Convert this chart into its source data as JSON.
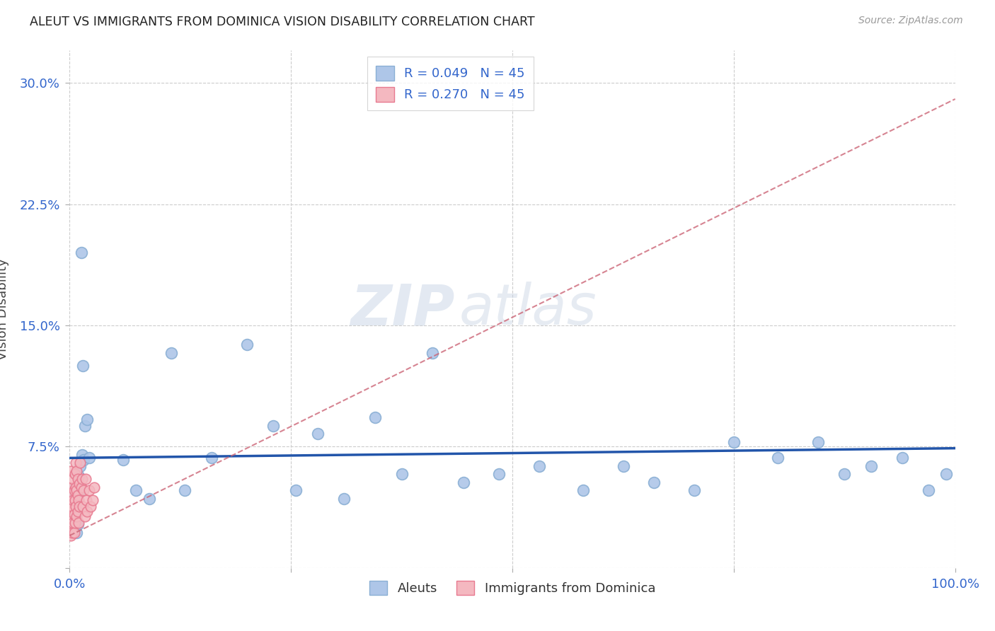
{
  "title": "ALEUT VS IMMIGRANTS FROM DOMINICA VISION DISABILITY CORRELATION CHART",
  "source": "Source: ZipAtlas.com",
  "ylabel": "Vision Disability",
  "xlim": [
    0.0,
    1.0
  ],
  "ylim": [
    0.0,
    0.32
  ],
  "xtick_labels": [
    "0.0%",
    "",
    "",
    "",
    "100.0%"
  ],
  "ytick_labels": [
    "",
    "7.5%",
    "15.0%",
    "22.5%",
    "30.0%"
  ],
  "yticks": [
    0.0,
    0.075,
    0.15,
    0.225,
    0.3
  ],
  "xticks": [
    0.0,
    0.25,
    0.5,
    0.75,
    1.0
  ],
  "aleuts_color": "#aec6e8",
  "aleuts_edge_color": "#8aafd4",
  "dominica_color": "#f4b8c0",
  "dominica_edge_color": "#e87a90",
  "aleuts_line_color": "#2255aa",
  "dominica_line_color": "#cc6677",
  "background_color": "#ffffff",
  "grid_color": "#cccccc",
  "legend_label_1": "R = 0.049   N = 45",
  "legend_label_2": "R = 0.270   N = 45",
  "bottom_legend_1": "Aleuts",
  "bottom_legend_2": "Immigrants from Dominica",
  "watermark_1": "ZIP",
  "watermark_2": "atlas",
  "aleuts_x": [
    0.003,
    0.005,
    0.006,
    0.007,
    0.008,
    0.009,
    0.01,
    0.011,
    0.012,
    0.013,
    0.014,
    0.015,
    0.016,
    0.017,
    0.02,
    0.022,
    0.06,
    0.075,
    0.09,
    0.115,
    0.13,
    0.16,
    0.2,
    0.23,
    0.255,
    0.28,
    0.31,
    0.345,
    0.375,
    0.41,
    0.445,
    0.485,
    0.53,
    0.58,
    0.625,
    0.66,
    0.705,
    0.75,
    0.8,
    0.845,
    0.875,
    0.905,
    0.94,
    0.97,
    0.99
  ],
  "aleuts_y": [
    0.048,
    0.04,
    0.033,
    0.043,
    0.022,
    0.027,
    0.057,
    0.047,
    0.063,
    0.195,
    0.07,
    0.125,
    0.067,
    0.088,
    0.092,
    0.068,
    0.067,
    0.048,
    0.043,
    0.133,
    0.048,
    0.068,
    0.138,
    0.088,
    0.048,
    0.083,
    0.043,
    0.093,
    0.058,
    0.133,
    0.053,
    0.058,
    0.063,
    0.048,
    0.063,
    0.053,
    0.048,
    0.078,
    0.068,
    0.078,
    0.058,
    0.063,
    0.068,
    0.048,
    0.058
  ],
  "dominica_x": [
    0.0005,
    0.001,
    0.001,
    0.001,
    0.002,
    0.002,
    0.002,
    0.003,
    0.003,
    0.003,
    0.004,
    0.004,
    0.004,
    0.005,
    0.005,
    0.005,
    0.006,
    0.006,
    0.006,
    0.007,
    0.007,
    0.007,
    0.008,
    0.008,
    0.008,
    0.009,
    0.009,
    0.009,
    0.01,
    0.01,
    0.011,
    0.011,
    0.012,
    0.013,
    0.014,
    0.015,
    0.016,
    0.017,
    0.018,
    0.019,
    0.02,
    0.022,
    0.024,
    0.026,
    0.028
  ],
  "dominica_y": [
    0.04,
    0.03,
    0.02,
    0.06,
    0.045,
    0.025,
    0.035,
    0.05,
    0.022,
    0.038,
    0.042,
    0.028,
    0.055,
    0.033,
    0.048,
    0.022,
    0.058,
    0.042,
    0.028,
    0.065,
    0.038,
    0.05,
    0.048,
    0.032,
    0.06,
    0.045,
    0.035,
    0.055,
    0.042,
    0.028,
    0.052,
    0.038,
    0.065,
    0.05,
    0.055,
    0.038,
    0.048,
    0.032,
    0.055,
    0.042,
    0.035,
    0.048,
    0.038,
    0.042,
    0.05
  ],
  "aleuts_trendline_x": [
    0.0,
    1.0
  ],
  "aleuts_trendline_y": [
    0.068,
    0.074
  ],
  "dominica_trendline_x": [
    0.0,
    1.0
  ],
  "dominica_trendline_y": [
    0.02,
    0.29
  ]
}
